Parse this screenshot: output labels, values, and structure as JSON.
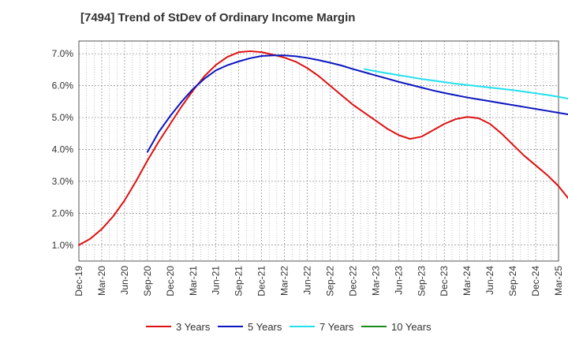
{
  "chart_data": {
    "type": "line",
    "title": "[7494]  Trend of StDev of Ordinary Income Margin",
    "xlabel": "",
    "ylabel": "",
    "x_ticks": [
      "Dec-19",
      "Mar-20",
      "Jun-20",
      "Sep-20",
      "Dec-20",
      "Mar-21",
      "Jun-21",
      "Sep-21",
      "Dec-21",
      "Mar-22",
      "Jun-22",
      "Sep-22",
      "Dec-22",
      "Mar-23",
      "Jun-23",
      "Sep-23",
      "Dec-23",
      "Mar-24",
      "Jun-24",
      "Sep-24",
      "Dec-24",
      "Mar-25"
    ],
    "y_ticks": [
      "1.0%",
      "2.0%",
      "3.0%",
      "4.0%",
      "5.0%",
      "6.0%",
      "7.0%"
    ],
    "ylim": [
      0.5,
      7.4
    ],
    "grid": true,
    "legend_position": "bottom",
    "series": [
      {
        "name": "3 Years",
        "color": "#dd1111",
        "values": [
          1.0,
          1.2,
          1.5,
          1.9,
          2.4,
          3.0,
          3.65,
          4.25,
          4.8,
          5.35,
          5.85,
          6.3,
          6.65,
          6.9,
          7.05,
          7.08,
          7.05,
          6.97,
          6.88,
          6.75,
          6.55,
          6.3,
          6.0,
          5.7,
          5.4,
          5.15,
          4.9,
          4.65,
          4.45,
          4.33,
          4.4,
          4.6,
          4.8,
          4.95,
          5.02,
          4.98,
          4.8,
          4.5,
          4.15,
          3.8,
          3.5,
          3.2,
          2.85,
          2.4,
          1.9
        ]
      },
      {
        "name": "5 Years",
        "color": "#0a16c0",
        "values": [
          null,
          null,
          null,
          null,
          null,
          null,
          3.92,
          4.55,
          5.05,
          5.5,
          5.9,
          6.22,
          6.48,
          6.64,
          6.76,
          6.86,
          6.93,
          6.95,
          6.95,
          6.92,
          6.87,
          6.8,
          6.72,
          6.63,
          6.52,
          6.42,
          6.32,
          6.22,
          6.12,
          6.03,
          5.94,
          5.85,
          5.77,
          5.7,
          5.63,
          5.57,
          5.51,
          5.45,
          5.39,
          5.33,
          5.27,
          5.21,
          5.15,
          5.09,
          5.05
        ]
      },
      {
        "name": "7 Years",
        "color": "#22e0ee",
        "values": [
          null,
          null,
          null,
          null,
          null,
          null,
          null,
          null,
          null,
          null,
          null,
          null,
          null,
          null,
          null,
          null,
          null,
          null,
          null,
          null,
          null,
          null,
          null,
          null,
          null,
          6.52,
          6.45,
          6.39,
          6.33,
          6.27,
          6.21,
          6.16,
          6.11,
          6.06,
          6.02,
          5.98,
          5.94,
          5.9,
          5.86,
          5.81,
          5.76,
          5.71,
          5.65,
          5.58,
          5.5
        ]
      },
      {
        "name": "10 Years",
        "color": "#1a8a1a",
        "values": []
      }
    ]
  }
}
